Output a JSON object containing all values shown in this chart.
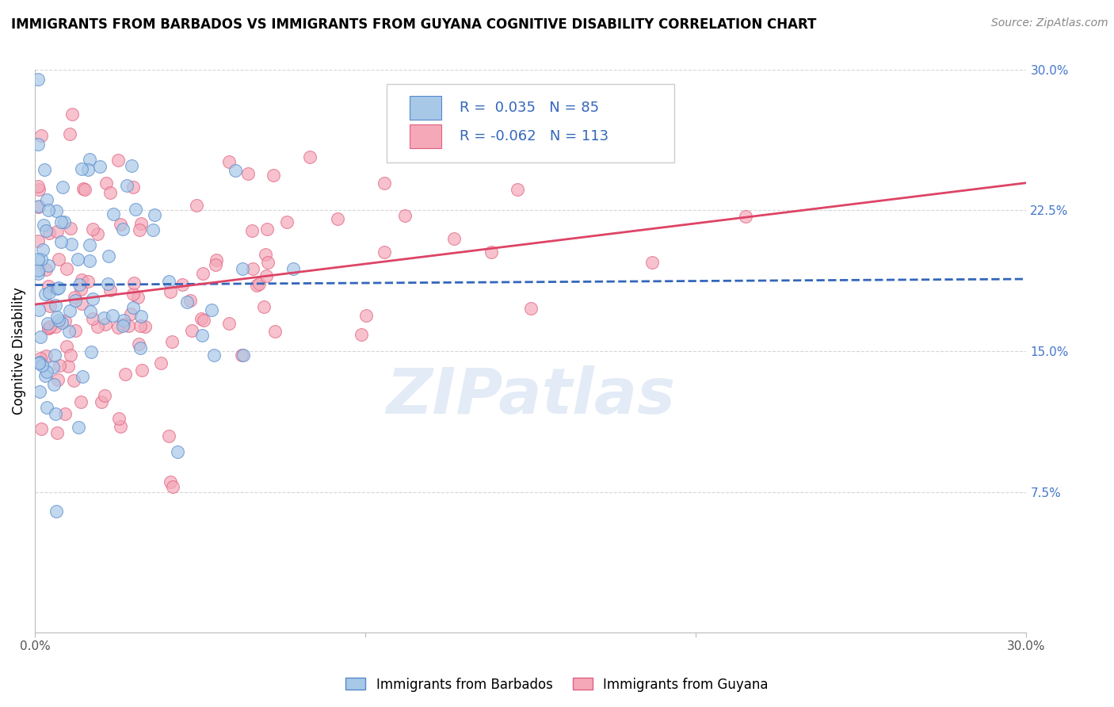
{
  "title": "IMMIGRANTS FROM BARBADOS VS IMMIGRANTS FROM GUYANA COGNITIVE DISABILITY CORRELATION CHART",
  "source": "Source: ZipAtlas.com",
  "ylabel": "Cognitive Disability",
  "xmin": 0.0,
  "xmax": 0.3,
  "ymin": 0.0,
  "ymax": 0.3,
  "barbados_fill": "#a8c8e8",
  "barbados_edge": "#5588cc",
  "guyana_fill": "#f4a8b8",
  "guyana_edge": "#e06080",
  "barbados_line_color": "#3366bb",
  "guyana_line_color": "#dd4466",
  "R_barbados": 0.035,
  "N_barbados": 85,
  "R_guyana": -0.062,
  "N_guyana": 113,
  "legend_label_barbados": "Immigrants from Barbados",
  "legend_label_guyana": "Immigrants from Guyana",
  "watermark": "ZIPatlas",
  "background_color": "#ffffff",
  "grid_color": "#cccccc",
  "seed_b": 42,
  "seed_g": 99
}
